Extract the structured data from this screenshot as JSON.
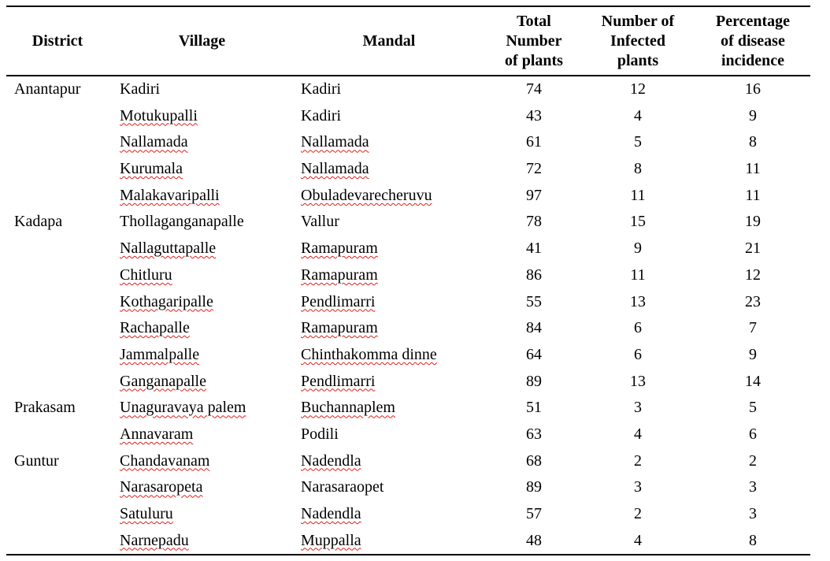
{
  "table": {
    "headers": {
      "district": "District",
      "village": "Village",
      "mandal": "Mandal",
      "total": [
        "Total",
        "Number",
        "of plants"
      ],
      "infected": [
        "Number of",
        "Infected",
        "plants"
      ],
      "percent": [
        "Percentage",
        "of disease",
        "incidence"
      ]
    },
    "rows": [
      {
        "district": "Anantapur",
        "village": "Kadiri",
        "mandal": "Kadiri",
        "total": "74",
        "infected": "12",
        "percent": "16"
      },
      {
        "district": "",
        "village": "Motukupalli",
        "mandal": "Kadiri",
        "total": "43",
        "infected": "4",
        "percent": "9"
      },
      {
        "district": "",
        "village": "Nallamada",
        "mandal": "Nallamada",
        "total": "61",
        "infected": "5",
        "percent": "8"
      },
      {
        "district": "",
        "village": "Kurumala",
        "mandal": "Nallamada",
        "total": "72",
        "infected": "8",
        "percent": "11"
      },
      {
        "district": "",
        "village": "Malakavaripalli",
        "mandal": "Obuladevarecheruvu",
        "total": "97",
        "infected": "11",
        "percent": "11"
      },
      {
        "district": "Kadapa",
        "village": "Thollaganganapalle",
        "mandal": "Vallur",
        "total": "78",
        "infected": "15",
        "percent": "19"
      },
      {
        "district": "",
        "village": "Nallaguttapalle",
        "mandal": "Ramapuram",
        "total": "41",
        "infected": "9",
        "percent": "21"
      },
      {
        "district": "",
        "village": "Chitluru",
        "mandal": "Ramapuram",
        "total": "86",
        "infected": "11",
        "percent": "12"
      },
      {
        "district": "",
        "village": "Kothagaripalle",
        "mandal": "Pendlimarri",
        "total": "55",
        "infected": "13",
        "percent": "23"
      },
      {
        "district": "",
        "village": "Rachapalle",
        "mandal": "Ramapuram",
        "total": "84",
        "infected": "6",
        "percent": "7"
      },
      {
        "district": "",
        "village": "Jammalpalle",
        "mandal": "Chinthakomma dinne",
        "total": "64",
        "infected": "6",
        "percent": "9"
      },
      {
        "district": "",
        "village": "Ganganapalle",
        "mandal": "Pendlimarri",
        "total": "89",
        "infected": "13",
        "percent": "14"
      },
      {
        "district": "Prakasam",
        "village": "Unaguravaya palem",
        "mandal": "Buchannaplem",
        "total": "51",
        "infected": "3",
        "percent": "5"
      },
      {
        "district": "",
        "village": "Annavaram",
        "mandal": "Podili",
        "total": "63",
        "infected": "4",
        "percent": "6"
      },
      {
        "district": "Guntur",
        "village": "Chandavanam",
        "mandal": "Nadendla",
        "total": "68",
        "infected": "2",
        "percent": "2"
      },
      {
        "district": "",
        "village": "Narasaropeta",
        "mandal": "Narasaraopet",
        "total": "89",
        "infected": "3",
        "percent": "3"
      },
      {
        "district": "",
        "village": "Satuluru",
        "mandal": "Nadendla",
        "total": "57",
        "infected": "2",
        "percent": "3"
      },
      {
        "district": "",
        "village": "Narnepadu",
        "mandal": "Muppalla",
        "total": "48",
        "infected": "4",
        "percent": "8"
      }
    ]
  }
}
